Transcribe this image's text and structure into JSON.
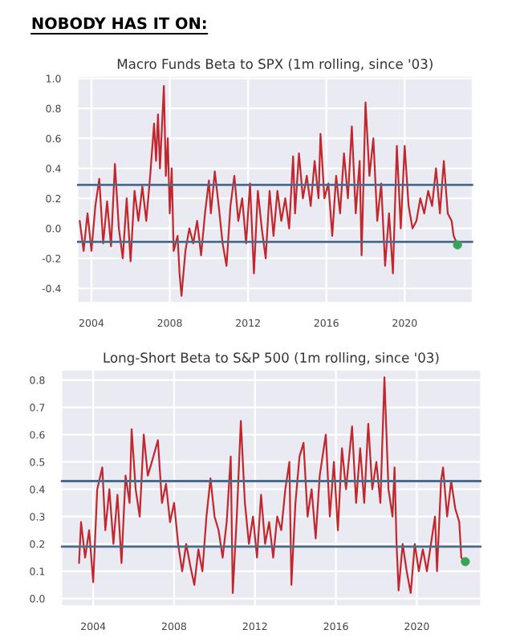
{
  "chart_data": [
    {
      "type": "line",
      "title": "Macro Funds Beta to SPX (1m rolling, since '03)",
      "annotations": [
        "NOBODY HAS IT ON:"
      ],
      "xlim": [
        2003.26,
        2023.5
      ],
      "xticks": [
        2004,
        2008,
        2012,
        2016,
        2020
      ],
      "ylim": [
        -0.5,
        1.02
      ],
      "yticks": [
        {
          "value": -0.4,
          "label": "-0.4"
        },
        {
          "value": -0.2,
          "label": "-0.2"
        },
        {
          "value": 0.0,
          "label": "0.0"
        },
        0.2,
        0.4,
        0.6,
        0.8,
        {
          "value": 1.0,
          "label": "1.0"
        }
      ],
      "grid": true,
      "ref_lines": [
        {
          "axis": "y",
          "value": 0.29,
          "color": "#4c6a8a"
        },
        {
          "axis": "y",
          "value": -0.09,
          "color": "#4c6a8a"
        }
      ],
      "series": [
        {
          "type": "line",
          "color": "#c0282d",
          "x": [
            2003.4,
            2003.6,
            2003.8,
            2004.0,
            2004.2,
            2004.4,
            2004.6,
            2004.8,
            2005.0,
            2005.2,
            2005.4,
            2005.6,
            2005.8,
            2006.0,
            2006.2,
            2006.4,
            2006.6,
            2006.8,
            2007.0,
            2007.2,
            2007.3,
            2007.4,
            2007.5,
            2007.7,
            2007.8,
            2007.9,
            2008.0,
            2008.1,
            2008.2,
            2008.4,
            2008.5,
            2008.6,
            2008.8,
            2009.0,
            2009.2,
            2009.4,
            2009.6,
            2009.8,
            2010.0,
            2010.1,
            2010.3,
            2010.5,
            2010.7,
            2010.9,
            2011.1,
            2011.3,
            2011.5,
            2011.7,
            2011.9,
            2012.1,
            2012.3,
            2012.5,
            2012.7,
            2012.9,
            2013.1,
            2013.3,
            2013.5,
            2013.7,
            2013.9,
            2014.1,
            2014.3,
            2014.4,
            2014.6,
            2014.8,
            2015.0,
            2015.2,
            2015.4,
            2015.6,
            2015.7,
            2015.9,
            2016.1,
            2016.3,
            2016.5,
            2016.7,
            2016.9,
            2017.1,
            2017.3,
            2017.5,
            2017.7,
            2017.8,
            2018.0,
            2018.2,
            2018.4,
            2018.6,
            2018.8,
            2019.0,
            2019.2,
            2019.4,
            2019.6,
            2019.8,
            2020.0,
            2020.2,
            2020.4,
            2020.6,
            2020.8,
            2021.0,
            2021.2,
            2021.4,
            2021.6,
            2021.8,
            2022.0,
            2022.2,
            2022.4,
            2022.5,
            2022.7
          ],
          "values": [
            0.05,
            -0.15,
            0.1,
            -0.15,
            0.15,
            0.33,
            -0.1,
            0.18,
            -0.12,
            0.43,
            0.0,
            -0.2,
            0.2,
            -0.22,
            0.25,
            0.05,
            0.28,
            0.05,
            0.35,
            0.7,
            0.45,
            0.76,
            0.4,
            0.95,
            0.35,
            0.6,
            0.1,
            0.4,
            -0.15,
            -0.05,
            -0.3,
            -0.45,
            -0.15,
            0.0,
            -0.1,
            0.05,
            -0.18,
            0.1,
            0.32,
            0.1,
            0.38,
            0.15,
            -0.1,
            -0.25,
            0.15,
            0.35,
            0.05,
            0.2,
            -0.1,
            0.3,
            -0.3,
            0.25,
            0.0,
            -0.2,
            0.25,
            -0.05,
            0.25,
            0.05,
            0.2,
            0.0,
            0.48,
            0.1,
            0.5,
            0.2,
            0.35,
            0.15,
            0.45,
            0.2,
            0.63,
            0.2,
            0.3,
            -0.05,
            0.35,
            0.1,
            0.5,
            0.2,
            0.68,
            0.1,
            0.45,
            -0.18,
            0.84,
            0.35,
            0.6,
            0.05,
            0.3,
            -0.25,
            0.1,
            -0.3,
            0.55,
            0.0,
            0.55,
            0.15,
            0.0,
            0.05,
            0.2,
            0.1,
            0.25,
            0.15,
            0.4,
            0.1,
            0.45,
            0.1,
            0.05,
            -0.05,
            -0.11
          ]
        },
        {
          "type": "scatter",
          "color": "#3aa35a",
          "marker": "circle",
          "x": [
            2022.7
          ],
          "values": [
            -0.11
          ]
        }
      ]
    },
    {
      "type": "line",
      "title": "Long-Short Beta to S&P 500 (1m rolling, since '03)",
      "xlim": [
        2002.4,
        2023.2
      ],
      "xticks": [
        2004,
        2008,
        2012,
        2016,
        2020
      ],
      "ylim": [
        -0.03,
        0.84
      ],
      "yticks": [
        {
          "value": 0.0,
          "label": "0.0"
        },
        0.1,
        0.2,
        0.3,
        0.4,
        0.5,
        0.6,
        0.7,
        0.8
      ],
      "grid": true,
      "ref_lines": [
        {
          "axis": "y",
          "value": 0.43,
          "color": "#4c6a8a"
        },
        {
          "axis": "y",
          "value": 0.19,
          "color": "#4c6a8a"
        }
      ],
      "series": [
        {
          "type": "line",
          "color": "#c0282d",
          "x": [
            2003.3,
            2003.4,
            2003.6,
            2003.8,
            2004.0,
            2004.2,
            2004.45,
            2004.6,
            2004.8,
            2005.0,
            2005.2,
            2005.4,
            2005.6,
            2005.8,
            2005.9,
            2006.1,
            2006.3,
            2006.5,
            2006.7,
            2006.9,
            2007.2,
            2007.4,
            2007.6,
            2007.8,
            2008.0,
            2008.2,
            2008.4,
            2008.6,
            2008.8,
            2009.0,
            2009.2,
            2009.4,
            2009.6,
            2009.8,
            2010.0,
            2010.2,
            2010.4,
            2010.6,
            2010.8,
            2010.9,
            2011.1,
            2011.3,
            2011.5,
            2011.7,
            2011.9,
            2012.1,
            2012.3,
            2012.5,
            2012.7,
            2012.9,
            2013.1,
            2013.3,
            2013.5,
            2013.7,
            2013.8,
            2014.0,
            2014.2,
            2014.4,
            2014.6,
            2014.8,
            2015.0,
            2015.2,
            2015.5,
            2015.7,
            2015.9,
            2016.1,
            2016.3,
            2016.5,
            2016.8,
            2017.0,
            2017.2,
            2017.4,
            2017.6,
            2017.8,
            2018.0,
            2018.2,
            2018.4,
            2018.6,
            2018.8,
            2018.9,
            2019.0,
            2019.1,
            2019.3,
            2019.5,
            2019.7,
            2019.9,
            2020.1,
            2020.3,
            2020.5,
            2020.7,
            2020.9,
            2021.0,
            2021.2,
            2021.3,
            2021.5,
            2021.7,
            2021.9,
            2022.1,
            2022.2,
            2022.3
          ],
          "values": [
            0.13,
            0.28,
            0.15,
            0.25,
            0.06,
            0.4,
            0.48,
            0.25,
            0.4,
            0.2,
            0.38,
            0.13,
            0.45,
            0.35,
            0.62,
            0.4,
            0.3,
            0.6,
            0.45,
            0.5,
            0.58,
            0.35,
            0.42,
            0.28,
            0.35,
            0.2,
            0.1,
            0.2,
            0.12,
            0.05,
            0.18,
            0.1,
            0.3,
            0.44,
            0.3,
            0.25,
            0.15,
            0.28,
            0.52,
            0.02,
            0.3,
            0.65,
            0.35,
            0.2,
            0.3,
            0.15,
            0.38,
            0.2,
            0.28,
            0.15,
            0.3,
            0.25,
            0.4,
            0.5,
            0.05,
            0.35,
            0.52,
            0.57,
            0.3,
            0.4,
            0.22,
            0.45,
            0.6,
            0.3,
            0.5,
            0.25,
            0.55,
            0.4,
            0.63,
            0.35,
            0.55,
            0.35,
            0.64,
            0.4,
            0.5,
            0.35,
            0.81,
            0.4,
            0.3,
            0.48,
            0.2,
            0.03,
            0.2,
            0.1,
            0.02,
            0.2,
            0.1,
            0.18,
            0.1,
            0.2,
            0.3,
            0.1,
            0.43,
            0.48,
            0.3,
            0.43,
            0.33,
            0.28,
            0.15,
            0.14
          ]
        },
        {
          "type": "scatter",
          "color": "#3aa35a",
          "marker": "circle",
          "x": [
            2022.4
          ],
          "values": [
            0.135
          ]
        }
      ]
    }
  ]
}
